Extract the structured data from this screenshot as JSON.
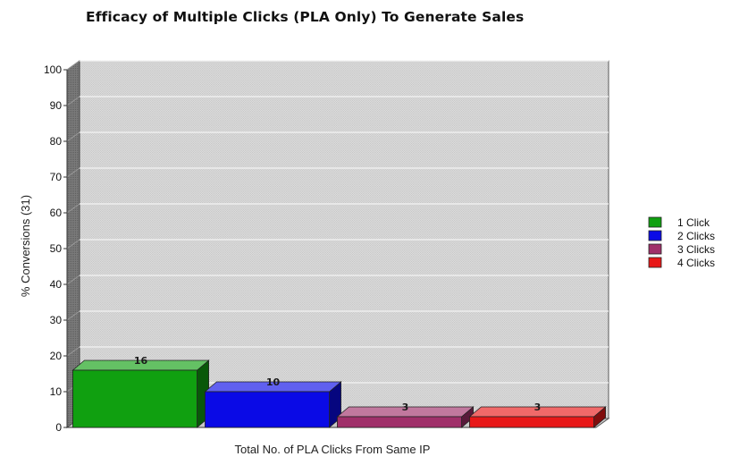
{
  "chart_data": {
    "type": "bar",
    "title": "Efficacy of Multiple Clicks (PLA Only) To Generate Sales",
    "xlabel": "Total No. of PLA Clicks From Same IP",
    "ylabel": "% Conversions (31)",
    "ylim": [
      0,
      100
    ],
    "yticks": [
      0,
      10,
      20,
      30,
      40,
      50,
      60,
      70,
      80,
      90,
      100
    ],
    "grid": true,
    "legend_position": "right",
    "series": [
      {
        "name": "1 Click",
        "value": 16,
        "label": "16",
        "color": "#10a010"
      },
      {
        "name": "2 Clicks",
        "value": 10,
        "label": "10",
        "color": "#0a0ae6"
      },
      {
        "name": "3 Clicks",
        "value": 3,
        "label": "3",
        "color": "#a0306a"
      },
      {
        "name": "4 Clicks",
        "value": 3,
        "label": "3",
        "color": "#e81818"
      }
    ],
    "colors": {
      "plot_background": "#d6d6d6",
      "left_wall": "#6e6e6e",
      "floor": "#c8c8c8",
      "gridline": "#f4f4f4"
    }
  }
}
